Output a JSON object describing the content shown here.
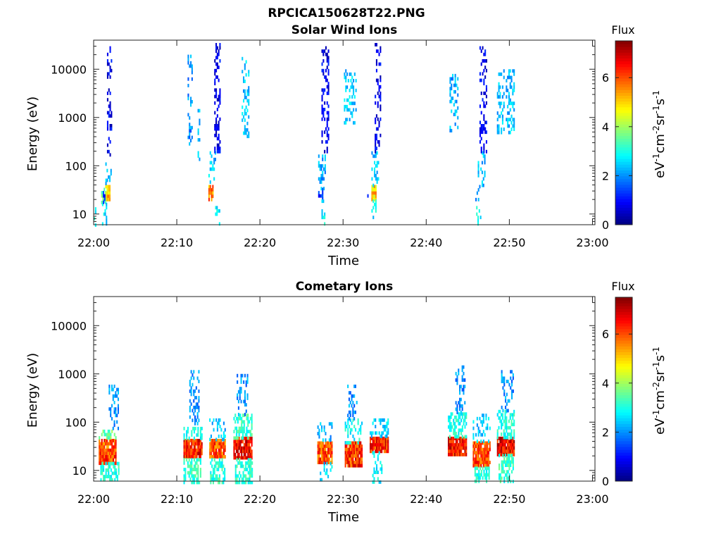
{
  "figure": {
    "filename_title": "RPCICA150628T22.PNG"
  },
  "chart_data": [
    {
      "type": "heatmap",
      "title": "Solar Wind Ions",
      "xlabel": "Time",
      "ylabel": "Energy (eV)",
      "x_ticks": [
        "22:00",
        "22:10",
        "22:20",
        "22:30",
        "22:40",
        "22:50",
        "23:00"
      ],
      "x_range_minutes": [
        0,
        60
      ],
      "y_scale": "log",
      "y_range": [
        6,
        40000
      ],
      "y_ticks": [
        "10",
        "100",
        "1000",
        "10000"
      ],
      "colorbar": {
        "label": "Flux",
        "units": "eV-1cm-2sr-1s-1",
        "range": [
          0,
          7.5
        ],
        "ticks": [
          "0",
          "2",
          "4",
          "6"
        ],
        "colormap": "jet"
      },
      "bursts": [
        {
          "t": 0.0,
          "w": 0.3,
          "emin": 6,
          "emax": 22,
          "flux": 2.8
        },
        {
          "t": 0.9,
          "w": 0.5,
          "emin": 18,
          "emax": 35,
          "flux": 3.5
        },
        {
          "t": 1.4,
          "w": 0.6,
          "emin": 20,
          "emax": 40,
          "flux": 5.0
        },
        {
          "t": 1.4,
          "w": 0.7,
          "emin": 40,
          "emax": 160,
          "flux": 2.3
        },
        {
          "t": 1.6,
          "w": 0.6,
          "emin": 160,
          "emax": 30000,
          "flux": 0.8
        },
        {
          "t": 1.0,
          "w": 0.5,
          "emin": 6,
          "emax": 20,
          "flux": 2.6
        },
        {
          "t": 1.1,
          "w": 0.3,
          "emin": 15,
          "emax": 30,
          "flux": 1.2
        },
        {
          "t": 11.3,
          "w": 0.6,
          "emin": 300,
          "emax": 20000,
          "flux": 2.0
        },
        {
          "t": 12.5,
          "w": 0.3,
          "emin": 100,
          "emax": 1500,
          "flux": 2.3
        },
        {
          "t": 13.8,
          "w": 0.6,
          "emin": 20,
          "emax": 40,
          "flux": 5.5
        },
        {
          "t": 13.8,
          "w": 0.9,
          "emin": 40,
          "emax": 200,
          "flux": 2.4
        },
        {
          "t": 14.5,
          "w": 0.7,
          "emin": 200,
          "emax": 35000,
          "flux": 0.8
        },
        {
          "t": 14.6,
          "w": 0.5,
          "emin": 6,
          "emax": 20,
          "flux": 2.7
        },
        {
          "t": 17.8,
          "w": 0.8,
          "emin": 400,
          "emax": 18000,
          "flux": 2.4
        },
        {
          "t": 27.0,
          "w": 0.5,
          "emin": 20,
          "emax": 35,
          "flux": 1.2
        },
        {
          "t": 27.0,
          "w": 0.8,
          "emin": 35,
          "emax": 200,
          "flux": 2.2
        },
        {
          "t": 27.4,
          "w": 0.8,
          "emin": 200,
          "emax": 30000,
          "flux": 0.8
        },
        {
          "t": 27.4,
          "w": 0.6,
          "emin": 6,
          "emax": 20,
          "flux": 2.7
        },
        {
          "t": 30.1,
          "w": 1.5,
          "emin": 800,
          "emax": 10000,
          "flux": 2.4
        },
        {
          "t": 33.4,
          "w": 0.6,
          "emin": 20,
          "emax": 40,
          "flux": 5.0
        },
        {
          "t": 33.4,
          "w": 0.9,
          "emin": 40,
          "emax": 200,
          "flux": 2.4
        },
        {
          "t": 33.8,
          "w": 0.7,
          "emin": 200,
          "emax": 35000,
          "flux": 0.8
        },
        {
          "t": 33.4,
          "w": 0.5,
          "emin": 6,
          "emax": 20,
          "flux": 2.7
        },
        {
          "t": 32.9,
          "w": 0.3,
          "emin": 20,
          "emax": 30,
          "flux": 1.1
        },
        {
          "t": 42.8,
          "w": 1.0,
          "emin": 500,
          "emax": 8000,
          "flux": 2.2
        },
        {
          "t": 45.9,
          "w": 0.6,
          "emin": 20,
          "emax": 40,
          "flux": 2.0
        },
        {
          "t": 46.2,
          "w": 0.8,
          "emin": 40,
          "emax": 200,
          "flux": 2.3
        },
        {
          "t": 46.4,
          "w": 0.8,
          "emin": 200,
          "emax": 30000,
          "flux": 0.8
        },
        {
          "t": 46.0,
          "w": 0.5,
          "emin": 6,
          "emax": 20,
          "flux": 2.8
        },
        {
          "t": 48.5,
          "w": 2.0,
          "emin": 500,
          "emax": 10000,
          "flux": 2.3
        }
      ]
    },
    {
      "type": "heatmap",
      "title": "Cometary Ions",
      "xlabel": "Time",
      "ylabel": "Energy (eV)",
      "x_ticks": [
        "22:00",
        "22:10",
        "22:20",
        "22:30",
        "22:40",
        "22:50",
        "23:00"
      ],
      "x_range_minutes": [
        0,
        60
      ],
      "y_scale": "log",
      "y_range": [
        6,
        40000
      ],
      "y_ticks": [
        "10",
        "100",
        "1000",
        "10000"
      ],
      "colorbar": {
        "label": "Flux",
        "units": "eV-1cm-2sr-1s-1",
        "range": [
          0,
          7.5
        ],
        "ticks": [
          "0",
          "2",
          "4",
          "6"
        ],
        "colormap": "jet"
      },
      "bursts": [
        {
          "t": 0.6,
          "w": 2.0,
          "emin": 15,
          "emax": 45,
          "flux": 6.0
        },
        {
          "t": 0.6,
          "w": 2.0,
          "emin": 45,
          "emax": 70,
          "flux": 3.5
        },
        {
          "t": 0.8,
          "w": 2.2,
          "emin": 6,
          "emax": 15,
          "flux": 3.0
        },
        {
          "t": 1.8,
          "w": 1.2,
          "emin": 70,
          "emax": 600,
          "flux": 2.0
        },
        {
          "t": 10.8,
          "w": 2.2,
          "emin": 18,
          "emax": 45,
          "flux": 6.4
        },
        {
          "t": 10.8,
          "w": 2.2,
          "emin": 45,
          "emax": 80,
          "flux": 3.0
        },
        {
          "t": 10.8,
          "w": 2.0,
          "emin": 6,
          "emax": 18,
          "flux": 3.2
        },
        {
          "t": 11.5,
          "w": 1.2,
          "emin": 100,
          "emax": 1200,
          "flux": 2.0
        },
        {
          "t": 13.9,
          "w": 1.9,
          "emin": 18,
          "emax": 45,
          "flux": 6.0
        },
        {
          "t": 13.9,
          "w": 1.9,
          "emin": 45,
          "emax": 120,
          "flux": 2.4
        },
        {
          "t": 14.0,
          "w": 1.8,
          "emin": 6,
          "emax": 18,
          "flux": 3.1
        },
        {
          "t": 16.8,
          "w": 2.2,
          "emin": 18,
          "emax": 50,
          "flux": 6.7
        },
        {
          "t": 16.8,
          "w": 2.2,
          "emin": 50,
          "emax": 150,
          "flux": 3.2
        },
        {
          "t": 17.2,
          "w": 1.3,
          "emin": 150,
          "emax": 1000,
          "flux": 2.0
        },
        {
          "t": 17.0,
          "w": 2.0,
          "emin": 6,
          "emax": 18,
          "flux": 3.1
        },
        {
          "t": 26.9,
          "w": 1.8,
          "emin": 15,
          "emax": 40,
          "flux": 6.0
        },
        {
          "t": 26.9,
          "w": 1.8,
          "emin": 40,
          "emax": 100,
          "flux": 2.2
        },
        {
          "t": 27.2,
          "w": 1.5,
          "emin": 6,
          "emax": 15,
          "flux": 2.5
        },
        {
          "t": 30.2,
          "w": 2.0,
          "emin": 12,
          "emax": 40,
          "flux": 6.2
        },
        {
          "t": 30.2,
          "w": 2.0,
          "emin": 40,
          "emax": 120,
          "flux": 2.8
        },
        {
          "t": 30.5,
          "w": 1.2,
          "emin": 120,
          "emax": 700,
          "flux": 2.0
        },
        {
          "t": 33.2,
          "w": 2.2,
          "emin": 25,
          "emax": 50,
          "flux": 6.3
        },
        {
          "t": 33.2,
          "w": 2.2,
          "emin": 50,
          "emax": 120,
          "flux": 2.5
        },
        {
          "t": 33.5,
          "w": 1.2,
          "emin": 6,
          "emax": 25,
          "flux": 2.8
        },
        {
          "t": 42.6,
          "w": 2.2,
          "emin": 22,
          "emax": 50,
          "flux": 6.5
        },
        {
          "t": 42.6,
          "w": 2.2,
          "emin": 50,
          "emax": 160,
          "flux": 3.0
        },
        {
          "t": 43.5,
          "w": 1.2,
          "emin": 160,
          "emax": 1500,
          "flux": 2.0
        },
        {
          "t": 45.6,
          "w": 2.0,
          "emin": 12,
          "emax": 40,
          "flux": 6.0
        },
        {
          "t": 45.6,
          "w": 2.0,
          "emin": 40,
          "emax": 150,
          "flux": 2.4
        },
        {
          "t": 45.8,
          "w": 1.8,
          "emin": 6,
          "emax": 12,
          "flux": 3.0
        },
        {
          "t": 48.5,
          "w": 2.0,
          "emin": 22,
          "emax": 50,
          "flux": 6.6
        },
        {
          "t": 48.5,
          "w": 2.0,
          "emin": 50,
          "emax": 180,
          "flux": 3.0
        },
        {
          "t": 49.0,
          "w": 1.5,
          "emin": 180,
          "emax": 1200,
          "flux": 2.0
        },
        {
          "t": 48.7,
          "w": 1.8,
          "emin": 6,
          "emax": 22,
          "flux": 3.2
        }
      ]
    }
  ]
}
